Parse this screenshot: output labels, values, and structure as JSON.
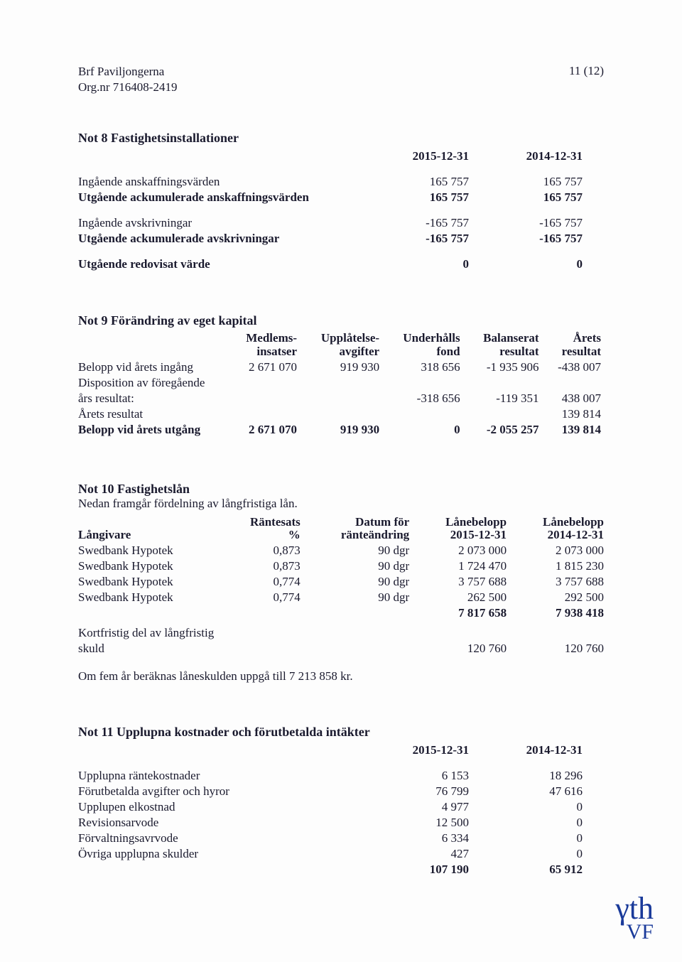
{
  "header": {
    "org_name": "Brf Paviljongerna",
    "org_nr": "Org.nr 716408-2419",
    "page_num": "11 (12)"
  },
  "note8": {
    "title": "Not 8 Fastighetsinstallationer",
    "col1": "2015-12-31",
    "col2": "2014-12-31",
    "rows": [
      {
        "label": "Ingående anskaffningsvärden",
        "v1": "165 757",
        "v2": "165 757",
        "bold": false
      },
      {
        "label": "Utgående ackumulerade anskaffningsvärden",
        "v1": "165 757",
        "v2": "165 757",
        "bold": true
      },
      {
        "gap": true
      },
      {
        "label": "Ingående avskrivningar",
        "v1": "-165 757",
        "v2": "-165 757",
        "bold": false
      },
      {
        "label": "Utgående ackumulerade avskrivningar",
        "v1": "-165 757",
        "v2": "-165 757",
        "bold": true
      },
      {
        "gap": true
      },
      {
        "label": "Utgående redovisat värde",
        "v1": "0",
        "v2": "0",
        "bold": true
      }
    ]
  },
  "note9": {
    "title": "Not 9 Förändring av eget kapital",
    "headers": {
      "c1a": "Medlems-",
      "c1b": "insatser",
      "c2a": "Upplåtelse-",
      "c2b": "avgifter",
      "c3a": "Underhålls",
      "c3b": "fond",
      "c4a": "Balanserat",
      "c4b": "resultat",
      "c5a": "Årets",
      "c5b": "resultat"
    },
    "rows": [
      {
        "label": "Belopp vid årets ingång",
        "c1": "2 671 070",
        "c2": "919 930",
        "c3": "318 656",
        "c4": "-1 935 906",
        "c5": "-438 007",
        "bold": false
      },
      {
        "label": "Disposition av föregående",
        "c1": "",
        "c2": "",
        "c3": "",
        "c4": "",
        "c5": "",
        "bold": false
      },
      {
        "label": "års resultat:",
        "c1": "",
        "c2": "",
        "c3": "-318 656",
        "c4": "-119 351",
        "c5": "438 007",
        "bold": false
      },
      {
        "label": "Årets resultat",
        "c1": "",
        "c2": "",
        "c3": "",
        "c4": "",
        "c5": "139 814",
        "bold": false
      },
      {
        "label": "Belopp vid årets utgång",
        "c1": "2 671 070",
        "c2": "919 930",
        "c3": "0",
        "c4": "-2 055 257",
        "c5": "139 814",
        "bold": true
      }
    ]
  },
  "note10": {
    "title": "Not 10 Fastighetslån",
    "subtitle": "Nedan framgår fördelning av långfristiga lån.",
    "headers": {
      "c0": "Långivare",
      "c1a": "Räntesats",
      "c1b": "%",
      "c2a": "Datum för",
      "c2b": "ränteändring",
      "c3a": "Lånebelopp",
      "c3b": "2015-12-31",
      "c4a": "Lånebelopp",
      "c4b": "2014-12-31"
    },
    "rows": [
      {
        "c0": "Swedbank Hypotek",
        "c1": "0,873",
        "c2": "90 dgr",
        "c3": "2 073 000",
        "c4": "2 073 000"
      },
      {
        "c0": "Swedbank Hypotek",
        "c1": "0,873",
        "c2": "90 dgr",
        "c3": "1 724 470",
        "c4": "1 815 230"
      },
      {
        "c0": "Swedbank Hypotek",
        "c1": "0,774",
        "c2": "90 dgr",
        "c3": "3 757 688",
        "c4": "3 757 688"
      },
      {
        "c0": "Swedbank Hypotek",
        "c1": "0,774",
        "c2": "90 dgr",
        "c3": "262 500",
        "c4": "292 500"
      }
    ],
    "total": {
      "c3": "7 817 658",
      "c4": "7 938 418"
    },
    "short_label1": "Kortfristig del av långfristig",
    "short_label2": "skuld",
    "short_v1": "120 760",
    "short_v2": "120 760",
    "footnote": "Om fem år beräknas låneskulden uppgå till 7 213 858 kr."
  },
  "note11": {
    "title": "Not 11 Upplupna kostnader och förutbetalda intäkter",
    "col1": "2015-12-31",
    "col2": "2014-12-31",
    "rows": [
      {
        "label": "Upplupna räntekostnader",
        "v1": "6 153",
        "v2": "18 296"
      },
      {
        "label": "Förutbetalda avgifter och hyror",
        "v1": "76 799",
        "v2": "47 616"
      },
      {
        "label": "Upplupen elkostnad",
        "v1": "4 977",
        "v2": "0"
      },
      {
        "label": "Revisionsarvode",
        "v1": "12 500",
        "v2": "0"
      },
      {
        "label": "Förvaltningsavrvode",
        "v1": "6 334",
        "v2": "0"
      },
      {
        "label": "Övriga upplupna skulder",
        "v1": "427",
        "v2": "0"
      }
    ],
    "total": {
      "v1": "107 190",
      "v2": "65 912"
    }
  }
}
